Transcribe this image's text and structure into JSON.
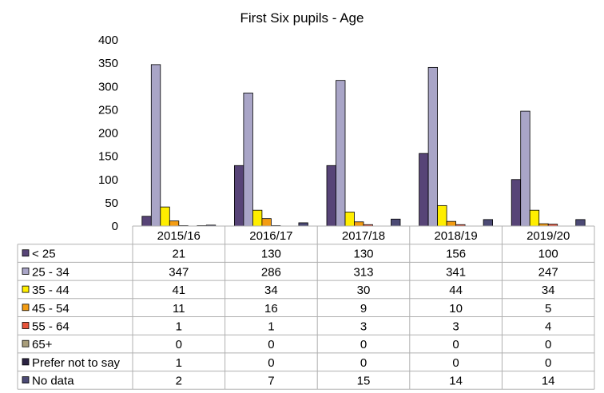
{
  "chart_data": {
    "type": "bar",
    "title": "First Six pupils - Age",
    "categories": [
      "2015/16",
      "2016/17",
      "2017/18",
      "2018/19",
      "2019/20"
    ],
    "ylim": [
      0,
      400
    ],
    "yticks": [
      0,
      50,
      100,
      150,
      200,
      250,
      300,
      350,
      400
    ],
    "grid": false,
    "legend": "data-table-below",
    "series": [
      {
        "name": "< 25",
        "color": "#574477",
        "values": [
          21,
          130,
          130,
          156,
          100
        ]
      },
      {
        "name": "25 - 34",
        "color": "#a9a5c7",
        "values": [
          347,
          286,
          313,
          341,
          247
        ]
      },
      {
        "name": "35 - 44",
        "color": "#ffee00",
        "values": [
          41,
          34,
          30,
          44,
          34
        ]
      },
      {
        "name": "45 - 54",
        "color": "#f39c12",
        "values": [
          11,
          16,
          9,
          10,
          5
        ]
      },
      {
        "name": "55 - 64",
        "color": "#e8553b",
        "values": [
          1,
          1,
          3,
          3,
          4
        ]
      },
      {
        "name": "65+",
        "color": "#a89d7a",
        "values": [
          0,
          0,
          0,
          0,
          0
        ]
      },
      {
        "name": "Prefer not to say",
        "color": "#2b2342",
        "values": [
          1,
          0,
          0,
          0,
          0
        ]
      },
      {
        "name": "No data",
        "color": "#4c4a75",
        "values": [
          2,
          7,
          15,
          14,
          14
        ]
      }
    ]
  }
}
